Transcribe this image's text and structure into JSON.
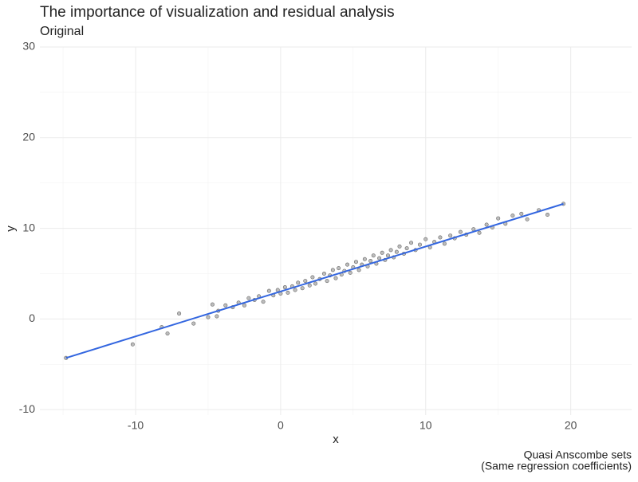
{
  "chart_data": {
    "type": "scatter",
    "title": "The importance of visualization and residual analysis",
    "subtitle": "Original",
    "xlabel": "x",
    "ylabel": "y",
    "caption": [
      "Quasi Anscombe sets",
      "(Same regression coefficients)"
    ],
    "xlim": [
      -16.6,
      24.2
    ],
    "ylim": [
      -10.6,
      30
    ],
    "xticks": [
      -10,
      0,
      10,
      20
    ],
    "yticks": [
      -10,
      0,
      10,
      20,
      30
    ],
    "xminor": [
      -15,
      -5,
      5,
      15
    ],
    "yminor": [
      -5,
      5,
      15,
      25
    ],
    "grid": true,
    "series": [
      {
        "color": "#bdbdbd",
        "x": [
          -14.8,
          -10.2,
          -8.2,
          -7.8,
          -7,
          -6,
          -5,
          -4.7,
          -4.3,
          -4.4,
          -3.8,
          -3.3,
          -2.9,
          -2.5,
          -2.2,
          -1.8,
          -1.5,
          -1.2,
          -0.8,
          -0.5,
          -0.2,
          0,
          0.3,
          0.5,
          0.8,
          1,
          1.2,
          1.5,
          1.7,
          2,
          2.2,
          2.4,
          2.7,
          3,
          3.2,
          3.4,
          3.6,
          3.8,
          4,
          4.2,
          4.4,
          4.6,
          4.8,
          5,
          5.2,
          5.4,
          5.6,
          5.8,
          6,
          6.2,
          6.4,
          6.6,
          6.8,
          7,
          7.2,
          7.4,
          7.6,
          7.8,
          8,
          8.2,
          8.5,
          8.7,
          9,
          9.3,
          9.6,
          10,
          10.3,
          10.6,
          11,
          11.3,
          11.7,
          12,
          12.4,
          12.8,
          13.3,
          13.7,
          14.2,
          14.6,
          15,
          15.5,
          16,
          16.6,
          17,
          17.8,
          18.4,
          19.5
        ],
        "values": [
          -4.3,
          -2.8,
          -0.9,
          -1.6,
          0.6,
          -0.5,
          0.2,
          1.6,
          0.9,
          0.3,
          1.5,
          1.3,
          1.8,
          1.5,
          2.3,
          2.1,
          2.5,
          1.9,
          3.1,
          2.6,
          3.2,
          2.8,
          3.5,
          2.9,
          3.6,
          3.2,
          4.0,
          3.4,
          4.2,
          3.7,
          4.6,
          3.9,
          4.4,
          5.0,
          4.2,
          4.8,
          5.4,
          4.5,
          5.6,
          4.9,
          5.3,
          6.0,
          5.1,
          5.7,
          6.3,
          5.4,
          6.0,
          6.6,
          5.8,
          6.4,
          7.0,
          6.1,
          6.7,
          7.3,
          6.5,
          7.0,
          7.6,
          6.8,
          7.4,
          8.0,
          7.2,
          7.8,
          8.4,
          7.6,
          8.2,
          8.8,
          7.9,
          8.5,
          9.0,
          8.3,
          9.2,
          8.9,
          9.6,
          9.3,
          9.9,
          9.5,
          10.4,
          10.1,
          11.1,
          10.5,
          11.4,
          11.6,
          11.0,
          12.0,
          11.5,
          12.7
        ]
      },
      {
        "color": "#3366e0",
        "type": "line",
        "x": [
          -14.8,
          19.5
        ],
        "values": [
          -4.3,
          12.7
        ]
      }
    ]
  }
}
